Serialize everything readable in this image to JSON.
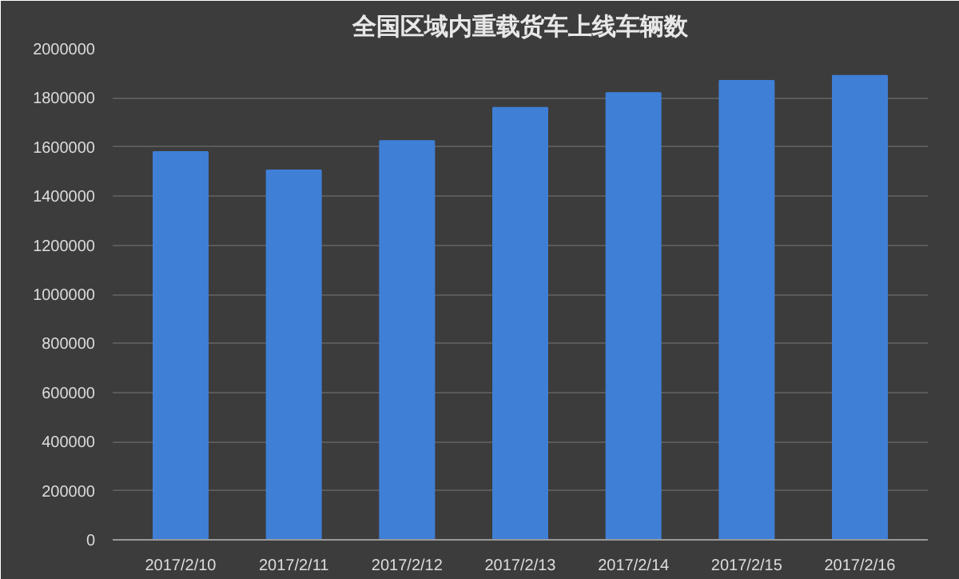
{
  "chart_data": {
    "type": "bar",
    "title": "全国区域内重载货车上线车辆数",
    "categories": [
      "2017/2/10",
      "2017/2/11",
      "2017/2/12",
      "2017/2/13",
      "2017/2/14",
      "2017/2/15",
      "2017/2/16"
    ],
    "values": [
      1580000,
      1505000,
      1625000,
      1760000,
      1820000,
      1870000,
      1890000
    ],
    "color": "#3f7fd6",
    "ylim": [
      0,
      2000000
    ],
    "yticks": [
      0,
      200000,
      400000,
      600000,
      800000,
      1000000,
      1200000,
      1400000,
      1600000,
      1800000,
      2000000
    ],
    "grid": "y"
  }
}
